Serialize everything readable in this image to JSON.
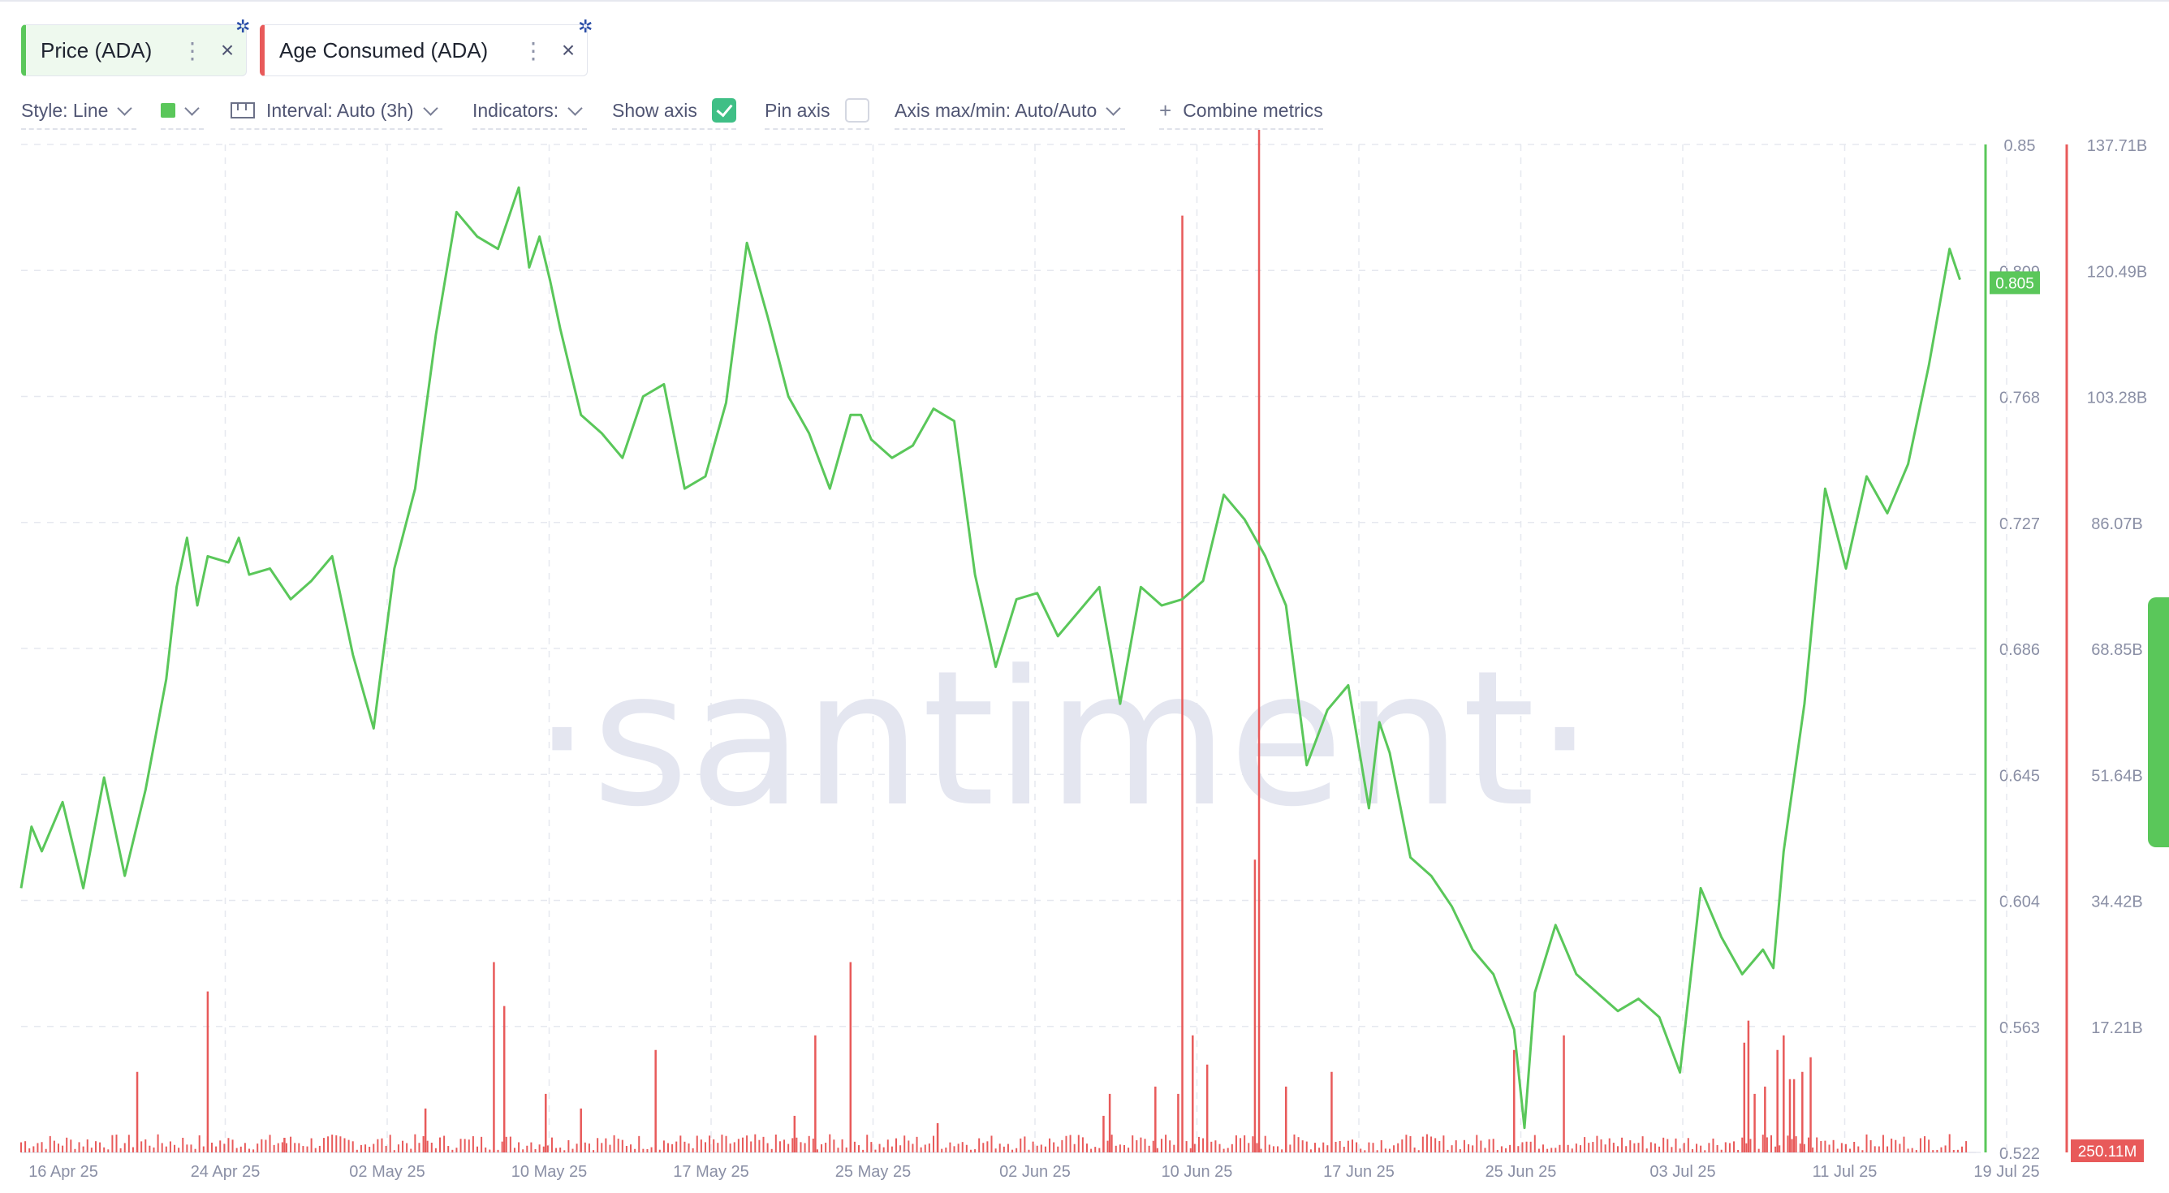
{
  "metrics": [
    {
      "label": "Price (ADA)",
      "color": "#5ac75a"
    },
    {
      "label": "Age Consumed (ADA)",
      "color": "#e85a5a"
    }
  ],
  "icons": {
    "more": "⋮",
    "close": "×",
    "chip_badge": "cardano-icon",
    "combine": "+"
  },
  "toolbar": {
    "style": "Style: Line",
    "interval": "Interval: Auto (3h)",
    "indicators": "Indicators:",
    "show_axis": "Show axis",
    "show_axis_checked": true,
    "pin_axis": "Pin axis",
    "pin_axis_checked": false,
    "axis_minmax": "Axis max/min: Auto/Auto",
    "combine": "Combine metrics"
  },
  "watermark": "·santiment·",
  "chart_data": {
    "type": "line",
    "x_labels": [
      "16 Apr 25",
      "24 Apr 25",
      "02 May 25",
      "10 May 25",
      "17 May 25",
      "25 May 25",
      "02 Jun 25",
      "10 Jun 25",
      "17 Jun 25",
      "25 Jun 25",
      "03 Jul 25",
      "11 Jul 25",
      "19 Jul 25"
    ],
    "price_axis_ticks": [
      "0.85",
      "0.809",
      "0.768",
      "0.727",
      "0.686",
      "0.645",
      "0.604",
      "0.563",
      "0.522"
    ],
    "price_ylim": [
      0.522,
      0.85
    ],
    "age_axis_ticks": [
      "137.71B",
      "120.49B",
      "103.28B",
      "86.07B",
      "68.85B",
      "51.64B",
      "34.42B",
      "17.21B"
    ],
    "age_ylim": [
      0,
      137.71
    ],
    "price_last_label": "0.805",
    "age_last_label": "250.11M",
    "grid": true,
    "series": [
      {
        "name": "Price (ADA)",
        "axis": "left",
        "color": "#5ac75a",
        "x": [
          0,
          0.5,
          1,
          2,
          3,
          4,
          5,
          6,
          7,
          7.5,
          8,
          8.5,
          9,
          10,
          10.5,
          11,
          12,
          13,
          14,
          15,
          16,
          17,
          18,
          19,
          20,
          21,
          22,
          23,
          24,
          24.5,
          25,
          25.5,
          26,
          27,
          28,
          29,
          30,
          31,
          32,
          33,
          34,
          35,
          36,
          37,
          38,
          39,
          40,
          40.5,
          41,
          42,
          43,
          44,
          45,
          46,
          47,
          48,
          49,
          50,
          51,
          52,
          53,
          54,
          55,
          56,
          57,
          58,
          59,
          60,
          61,
          62,
          63,
          64,
          65,
          65.5,
          66,
          67,
          68,
          69,
          70,
          71,
          72,
          72.5,
          73,
          74,
          75,
          76,
          77,
          78,
          79,
          80,
          81,
          82,
          83,
          84,
          84.5,
          85,
          86,
          87,
          88,
          89,
          90,
          91,
          92,
          93,
          93.5
        ],
        "values": [
          0.608,
          0.628,
          0.62,
          0.636,
          0.608,
          0.644,
          0.612,
          0.64,
          0.676,
          0.706,
          0.722,
          0.7,
          0.716,
          0.714,
          0.722,
          0.71,
          0.712,
          0.702,
          0.708,
          0.716,
          0.684,
          0.66,
          0.712,
          0.738,
          0.788,
          0.828,
          0.82,
          0.816,
          0.836,
          0.81,
          0.82,
          0.806,
          0.79,
          0.762,
          0.756,
          0.748,
          0.768,
          0.772,
          0.738,
          0.742,
          0.766,
          0.818,
          0.794,
          0.768,
          0.756,
          0.738,
          0.762,
          0.762,
          0.754,
          0.748,
          0.752,
          0.764,
          0.76,
          0.71,
          0.68,
          0.702,
          0.704,
          0.69,
          0.698,
          0.706,
          0.668,
          0.706,
          0.7,
          0.702,
          0.708,
          0.736,
          0.728,
          0.716,
          0.7,
          0.648,
          0.666,
          0.674,
          0.634,
          0.662,
          0.652,
          0.618,
          0.612,
          0.602,
          0.588,
          0.58,
          0.562,
          0.53,
          0.574,
          0.596,
          0.58,
          0.574,
          0.568,
          0.572,
          0.566,
          0.548,
          0.608,
          0.592,
          0.58,
          0.588,
          0.582,
          0.62,
          0.668,
          0.738,
          0.712,
          0.742,
          0.73,
          0.746,
          0.778,
          0.816,
          0.806
        ]
      },
      {
        "name": "Age Consumed (ADA)",
        "axis": "right",
        "color": "#e85a5a",
        "type": "bar",
        "spikes_x": [
          5.6,
          9,
          12.7,
          19.5,
          22.8,
          23.3,
          25.3,
          27,
          30.6,
          37.3,
          38.3,
          40,
          44.2,
          52.2,
          52.5,
          54.7,
          55.8,
          56,
          56.5,
          57.2,
          59.5,
          59.7,
          61,
          63.2,
          72,
          74.4,
          83.1,
          83.3,
          83.6,
          84.1,
          84.7,
          85,
          85.3,
          85.5,
          85.9,
          86.3
        ],
        "spikes_values": [
          11,
          22,
          2,
          6,
          26,
          20,
          8,
          6,
          14,
          5,
          16,
          26,
          4,
          5,
          8,
          9,
          8,
          128,
          16,
          12,
          40,
          142,
          9,
          11,
          14,
          16,
          15,
          18,
          8,
          9,
          14,
          16,
          10,
          10,
          11,
          13
        ]
      }
    ]
  }
}
